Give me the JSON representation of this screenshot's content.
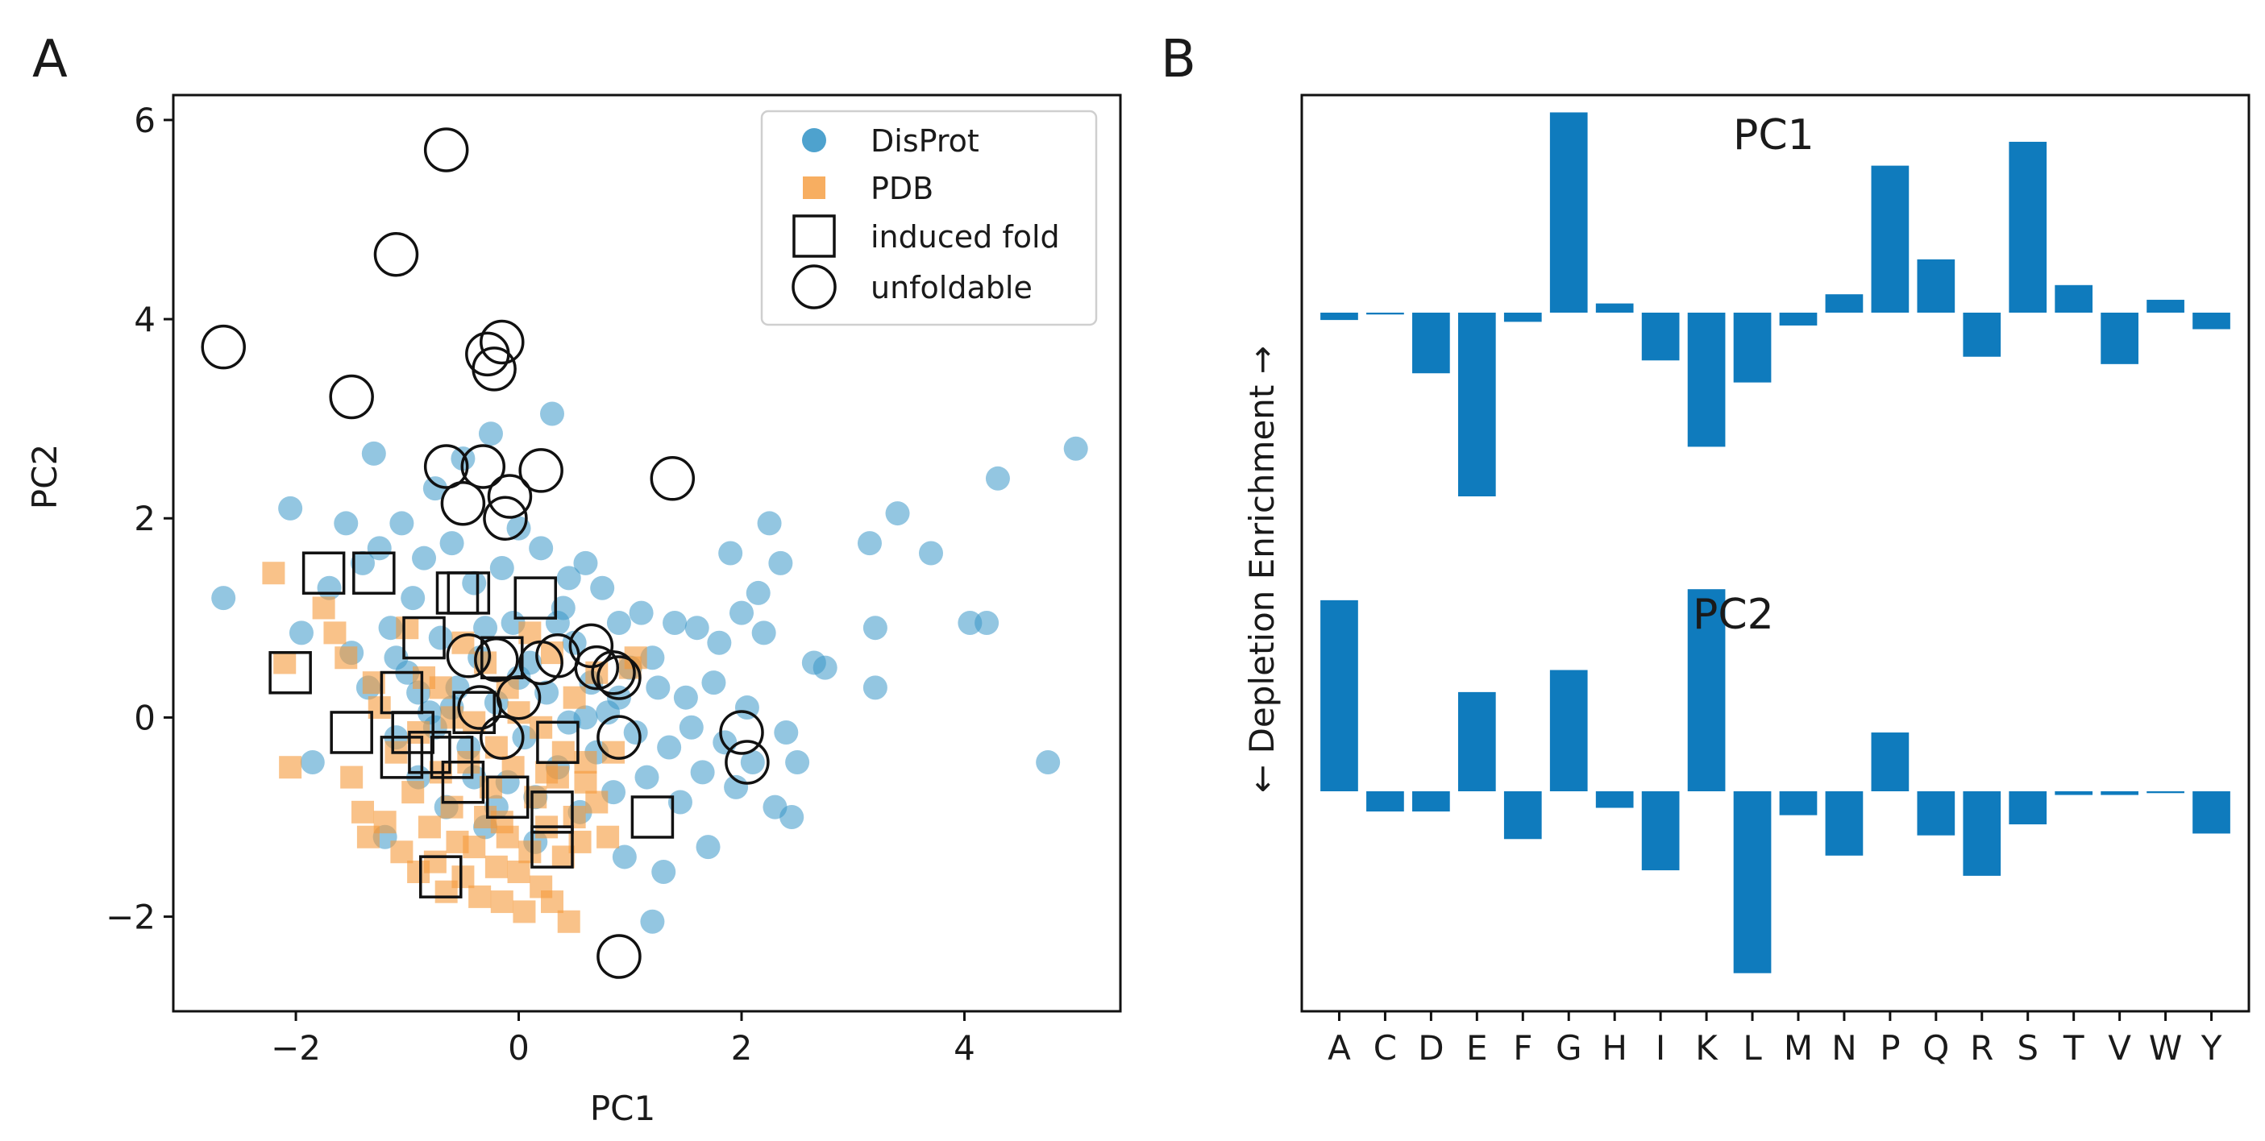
{
  "panel_a_label": "A",
  "panel_b_label": "B",
  "chart_data": [
    {
      "type": "scatter",
      "panel": "A",
      "xlabel": "PC1",
      "ylabel": "PC2",
      "xlim": [
        -3.1,
        5.4
      ],
      "ylim": [
        -2.95,
        6.25
      ],
      "xticks": [
        -2,
        0,
        2,
        4
      ],
      "yticks": [
        -2,
        0,
        2,
        4,
        6
      ],
      "xtick_labels": [
        "−2",
        "0",
        "2",
        "4"
      ],
      "ytick_labels": [
        "−2",
        "0",
        "2",
        "4",
        "6"
      ],
      "legend_position": "top-right",
      "legend": [
        "DisProt",
        "PDB",
        "induced fold",
        "unfoldable"
      ],
      "colors": {
        "DisProt": "#3b98c9",
        "PDB": "#f59a3a",
        "marker_outline": "#111111"
      },
      "series": [
        {
          "name": "DisProt",
          "marker": "circle",
          "points": [
            [
              -2.65,
              1.2
            ],
            [
              -2.05,
              2.1
            ],
            [
              -1.95,
              0.85
            ],
            [
              -1.85,
              -0.45
            ],
            [
              -1.7,
              1.3
            ],
            [
              -1.55,
              1.95
            ],
            [
              -1.5,
              0.65
            ],
            [
              -1.4,
              1.55
            ],
            [
              -1.35,
              0.3
            ],
            [
              -1.3,
              2.65
            ],
            [
              -1.25,
              1.7
            ],
            [
              -1.2,
              -1.2
            ],
            [
              -1.15,
              0.9
            ],
            [
              -1.1,
              -0.2
            ],
            [
              -1.05,
              1.95
            ],
            [
              -1.0,
              0.45
            ],
            [
              -0.95,
              1.2
            ],
            [
              -0.9,
              -0.6
            ],
            [
              -0.85,
              1.6
            ],
            [
              -0.8,
              0.05
            ],
            [
              -0.75,
              2.3
            ],
            [
              -0.7,
              0.8
            ],
            [
              -0.65,
              -0.9
            ],
            [
              -0.6,
              1.75
            ],
            [
              -0.55,
              0.3
            ],
            [
              -0.5,
              2.6
            ],
            [
              -0.45,
              -0.3
            ],
            [
              -0.4,
              1.35
            ],
            [
              -0.35,
              0.6
            ],
            [
              -0.3,
              -1.1
            ],
            [
              -0.25,
              2.85
            ],
            [
              -0.2,
              0.15
            ],
            [
              -0.15,
              1.5
            ],
            [
              -0.1,
              -0.65
            ],
            [
              -0.05,
              0.95
            ],
            [
              0.0,
              1.9
            ],
            [
              0.05,
              -0.2
            ],
            [
              0.1,
              0.55
            ],
            [
              0.15,
              -1.25
            ],
            [
              0.2,
              1.7
            ],
            [
              0.25,
              0.25
            ],
            [
              0.3,
              3.05
            ],
            [
              0.35,
              -0.5
            ],
            [
              0.4,
              1.1
            ],
            [
              0.45,
              -0.05
            ],
            [
              0.5,
              0.75
            ],
            [
              0.55,
              -0.95
            ],
            [
              0.6,
              1.55
            ],
            [
              0.65,
              0.35
            ],
            [
              0.7,
              -0.35
            ],
            [
              0.75,
              1.3
            ],
            [
              0.8,
              0.05
            ],
            [
              0.85,
              -0.75
            ],
            [
              0.9,
              0.95
            ],
            [
              0.95,
              -1.4
            ],
            [
              1.0,
              0.5
            ],
            [
              1.05,
              -0.15
            ],
            [
              1.1,
              1.05
            ],
            [
              1.15,
              -0.6
            ],
            [
              1.2,
              -2.05
            ],
            [
              1.25,
              0.3
            ],
            [
              1.3,
              -1.55
            ],
            [
              1.35,
              -0.3
            ],
            [
              1.4,
              0.95
            ],
            [
              1.45,
              -0.85
            ],
            [
              1.5,
              0.2
            ],
            [
              1.55,
              -0.1
            ],
            [
              1.6,
              0.9
            ],
            [
              1.65,
              -0.55
            ],
            [
              1.7,
              -1.3
            ],
            [
              1.75,
              0.35
            ],
            [
              1.8,
              0.75
            ],
            [
              1.85,
              -0.25
            ],
            [
              1.9,
              1.65
            ],
            [
              1.95,
              -0.7
            ],
            [
              2.0,
              1.05
            ],
            [
              2.05,
              0.1
            ],
            [
              2.1,
              -0.45
            ],
            [
              2.15,
              1.25
            ],
            [
              2.2,
              0.85
            ],
            [
              2.25,
              1.95
            ],
            [
              2.3,
              -0.9
            ],
            [
              2.35,
              1.55
            ],
            [
              2.4,
              -0.15
            ],
            [
              2.45,
              -1.0
            ],
            [
              2.5,
              -0.45
            ],
            [
              2.65,
              0.55
            ],
            [
              2.75,
              0.5
            ],
            [
              3.15,
              1.75
            ],
            [
              3.2,
              0.9
            ],
            [
              3.2,
              0.3
            ],
            [
              3.4,
              2.05
            ],
            [
              3.7,
              1.65
            ],
            [
              4.05,
              0.95
            ],
            [
              4.2,
              0.95
            ],
            [
              4.3,
              2.4
            ],
            [
              4.75,
              -0.45
            ],
            [
              5.0,
              2.7
            ],
            [
              -0.3,
              0.9
            ],
            [
              0.0,
              0.4
            ],
            [
              0.35,
              0.95
            ],
            [
              -0.6,
              0.1
            ],
            [
              -0.9,
              0.25
            ],
            [
              0.6,
              0.0
            ],
            [
              0.15,
              -0.8
            ],
            [
              -0.2,
              -0.9
            ],
            [
              -0.75,
              -0.1
            ],
            [
              0.9,
              0.2
            ],
            [
              1.2,
              0.6
            ],
            [
              -1.1,
              0.6
            ],
            [
              0.45,
              1.4
            ],
            [
              -0.4,
              -0.6
            ]
          ]
        },
        {
          "name": "PDB",
          "marker": "square",
          "points": [
            [
              -2.2,
              1.45
            ],
            [
              -2.1,
              0.55
            ],
            [
              -2.05,
              -0.5
            ],
            [
              -1.75,
              1.1
            ],
            [
              -1.65,
              0.85
            ],
            [
              -1.55,
              0.6
            ],
            [
              -1.5,
              -0.6
            ],
            [
              -1.4,
              -0.95
            ],
            [
              -1.35,
              -1.2
            ],
            [
              -1.25,
              0.1
            ],
            [
              -1.2,
              -1.05
            ],
            [
              -1.1,
              -0.35
            ],
            [
              -1.05,
              -1.35
            ],
            [
              -0.95,
              -0.75
            ],
            [
              -0.9,
              -1.55
            ],
            [
              -0.85,
              0.4
            ],
            [
              -0.8,
              -1.1
            ],
            [
              -0.75,
              -1.45
            ],
            [
              -0.7,
              -0.55
            ],
            [
              -0.65,
              -1.75
            ],
            [
              -0.6,
              -0.9
            ],
            [
              -0.55,
              -1.25
            ],
            [
              -0.5,
              -1.6
            ],
            [
              -0.45,
              -0.45
            ],
            [
              -0.4,
              -1.3
            ],
            [
              -0.35,
              -1.8
            ],
            [
              -0.3,
              -1.0
            ],
            [
              -0.25,
              -0.7
            ],
            [
              -0.2,
              -1.5
            ],
            [
              -0.15,
              -1.85
            ],
            [
              -0.1,
              -1.2
            ],
            [
              -0.05,
              -0.5
            ],
            [
              0.0,
              -1.55
            ],
            [
              0.05,
              -1.95
            ],
            [
              0.1,
              -1.35
            ],
            [
              0.15,
              -0.8
            ],
            [
              0.2,
              -1.7
            ],
            [
              0.25,
              -1.1
            ],
            [
              0.3,
              -1.85
            ],
            [
              0.35,
              -0.6
            ],
            [
              0.4,
              -1.4
            ],
            [
              0.45,
              -2.05
            ],
            [
              0.5,
              -1.0
            ],
            [
              0.55,
              -1.25
            ],
            [
              0.6,
              -0.45
            ],
            [
              0.7,
              -0.85
            ],
            [
              0.8,
              -1.2
            ],
            [
              1.0,
              0.5
            ],
            [
              1.05,
              0.6
            ],
            [
              -0.5,
              0.75
            ],
            [
              -0.3,
              0.55
            ],
            [
              -0.1,
              0.3
            ],
            [
              0.1,
              0.85
            ],
            [
              0.3,
              0.65
            ],
            [
              0.5,
              0.2
            ],
            [
              0.7,
              0.45
            ],
            [
              -0.9,
              -0.15
            ],
            [
              -0.6,
              0.0
            ],
            [
              -0.2,
              -0.3
            ],
            [
              0.0,
              0.05
            ],
            [
              0.2,
              -0.1
            ],
            [
              0.4,
              -0.35
            ],
            [
              -1.3,
              0.35
            ],
            [
              -1.0,
              0.9
            ],
            [
              -0.7,
              0.3
            ],
            [
              -0.4,
              -0.05
            ],
            [
              0.6,
              -0.65
            ],
            [
              0.85,
              -0.35
            ],
            [
              -0.15,
              -1.05
            ],
            [
              0.25,
              -0.55
            ]
          ]
        },
        {
          "name": "induced fold",
          "marker": "open-square",
          "points": [
            [
              -2.05,
              0.45
            ],
            [
              -1.75,
              1.45
            ],
            [
              -1.5,
              -0.15
            ],
            [
              -1.3,
              1.45
            ],
            [
              -1.05,
              -0.4
            ],
            [
              -1.05,
              0.25
            ],
            [
              -0.95,
              -0.15
            ],
            [
              -0.85,
              0.8
            ],
            [
              -0.8,
              -0.35
            ],
            [
              -0.7,
              -1.6
            ],
            [
              -0.6,
              -0.4
            ],
            [
              -0.55,
              1.25
            ],
            [
              -0.5,
              -0.65
            ],
            [
              -0.45,
              1.25
            ],
            [
              -0.4,
              0.05
            ],
            [
              -0.15,
              0.6
            ],
            [
              -0.1,
              -0.8
            ],
            [
              0.15,
              1.2
            ],
            [
              0.3,
              -0.95
            ],
            [
              0.3,
              -1.3
            ],
            [
              0.35,
              -0.25
            ],
            [
              1.2,
              -1.0
            ]
          ]
        },
        {
          "name": "unfoldable",
          "marker": "open-circle",
          "points": [
            [
              -0.65,
              5.7
            ],
            [
              -1.1,
              4.65
            ],
            [
              -2.65,
              3.72
            ],
            [
              -1.5,
              3.22
            ],
            [
              -0.15,
              3.77
            ],
            [
              -0.28,
              3.65
            ],
            [
              -0.22,
              3.5
            ],
            [
              -0.65,
              2.52
            ],
            [
              -0.32,
              2.52
            ],
            [
              0.2,
              2.48
            ],
            [
              1.38,
              2.4
            ],
            [
              -0.5,
              2.15
            ],
            [
              -0.08,
              2.22
            ],
            [
              -0.12,
              2.0
            ],
            [
              -0.45,
              0.62
            ],
            [
              -0.2,
              0.58
            ],
            [
              0.2,
              0.55
            ],
            [
              0.35,
              0.62
            ],
            [
              0.65,
              0.72
            ],
            [
              0.7,
              0.5
            ],
            [
              0.85,
              0.45
            ],
            [
              0.9,
              0.4
            ],
            [
              -0.35,
              0.1
            ],
            [
              0.0,
              0.2
            ],
            [
              -0.15,
              -0.2
            ],
            [
              0.9,
              -0.2
            ],
            [
              2.0,
              -0.15
            ],
            [
              2.05,
              -0.45
            ],
            [
              0.9,
              -2.4
            ]
          ]
        }
      ]
    },
    {
      "type": "bar",
      "panel": "B",
      "ylabel": "← Depletion   Enrichment →",
      "categories": [
        "A",
        "C",
        "D",
        "E",
        "F",
        "G",
        "H",
        "I",
        "K",
        "L",
        "M",
        "N",
        "P",
        "Q",
        "R",
        "S",
        "T",
        "V",
        "W",
        "Y"
      ],
      "bar_color": "#0f7bbd",
      "series": [
        {
          "name": "PC1",
          "values": [
            -0.04,
            -0.01,
            -0.33,
            -1.0,
            -0.05,
            1.09,
            0.05,
            -0.26,
            -0.73,
            -0.38,
            -0.07,
            0.1,
            0.8,
            0.29,
            -0.24,
            0.93,
            0.15,
            -0.28,
            0.07,
            -0.09
          ]
        },
        {
          "name": "PC2",
          "values": [
            1.04,
            -0.11,
            -0.11,
            0.54,
            -0.26,
            0.66,
            -0.09,
            -0.43,
            1.1,
            -0.99,
            -0.13,
            -0.35,
            0.32,
            -0.24,
            -0.46,
            -0.18,
            -0.02,
            -0.02,
            -0.01,
            -0.23
          ]
        }
      ]
    }
  ]
}
